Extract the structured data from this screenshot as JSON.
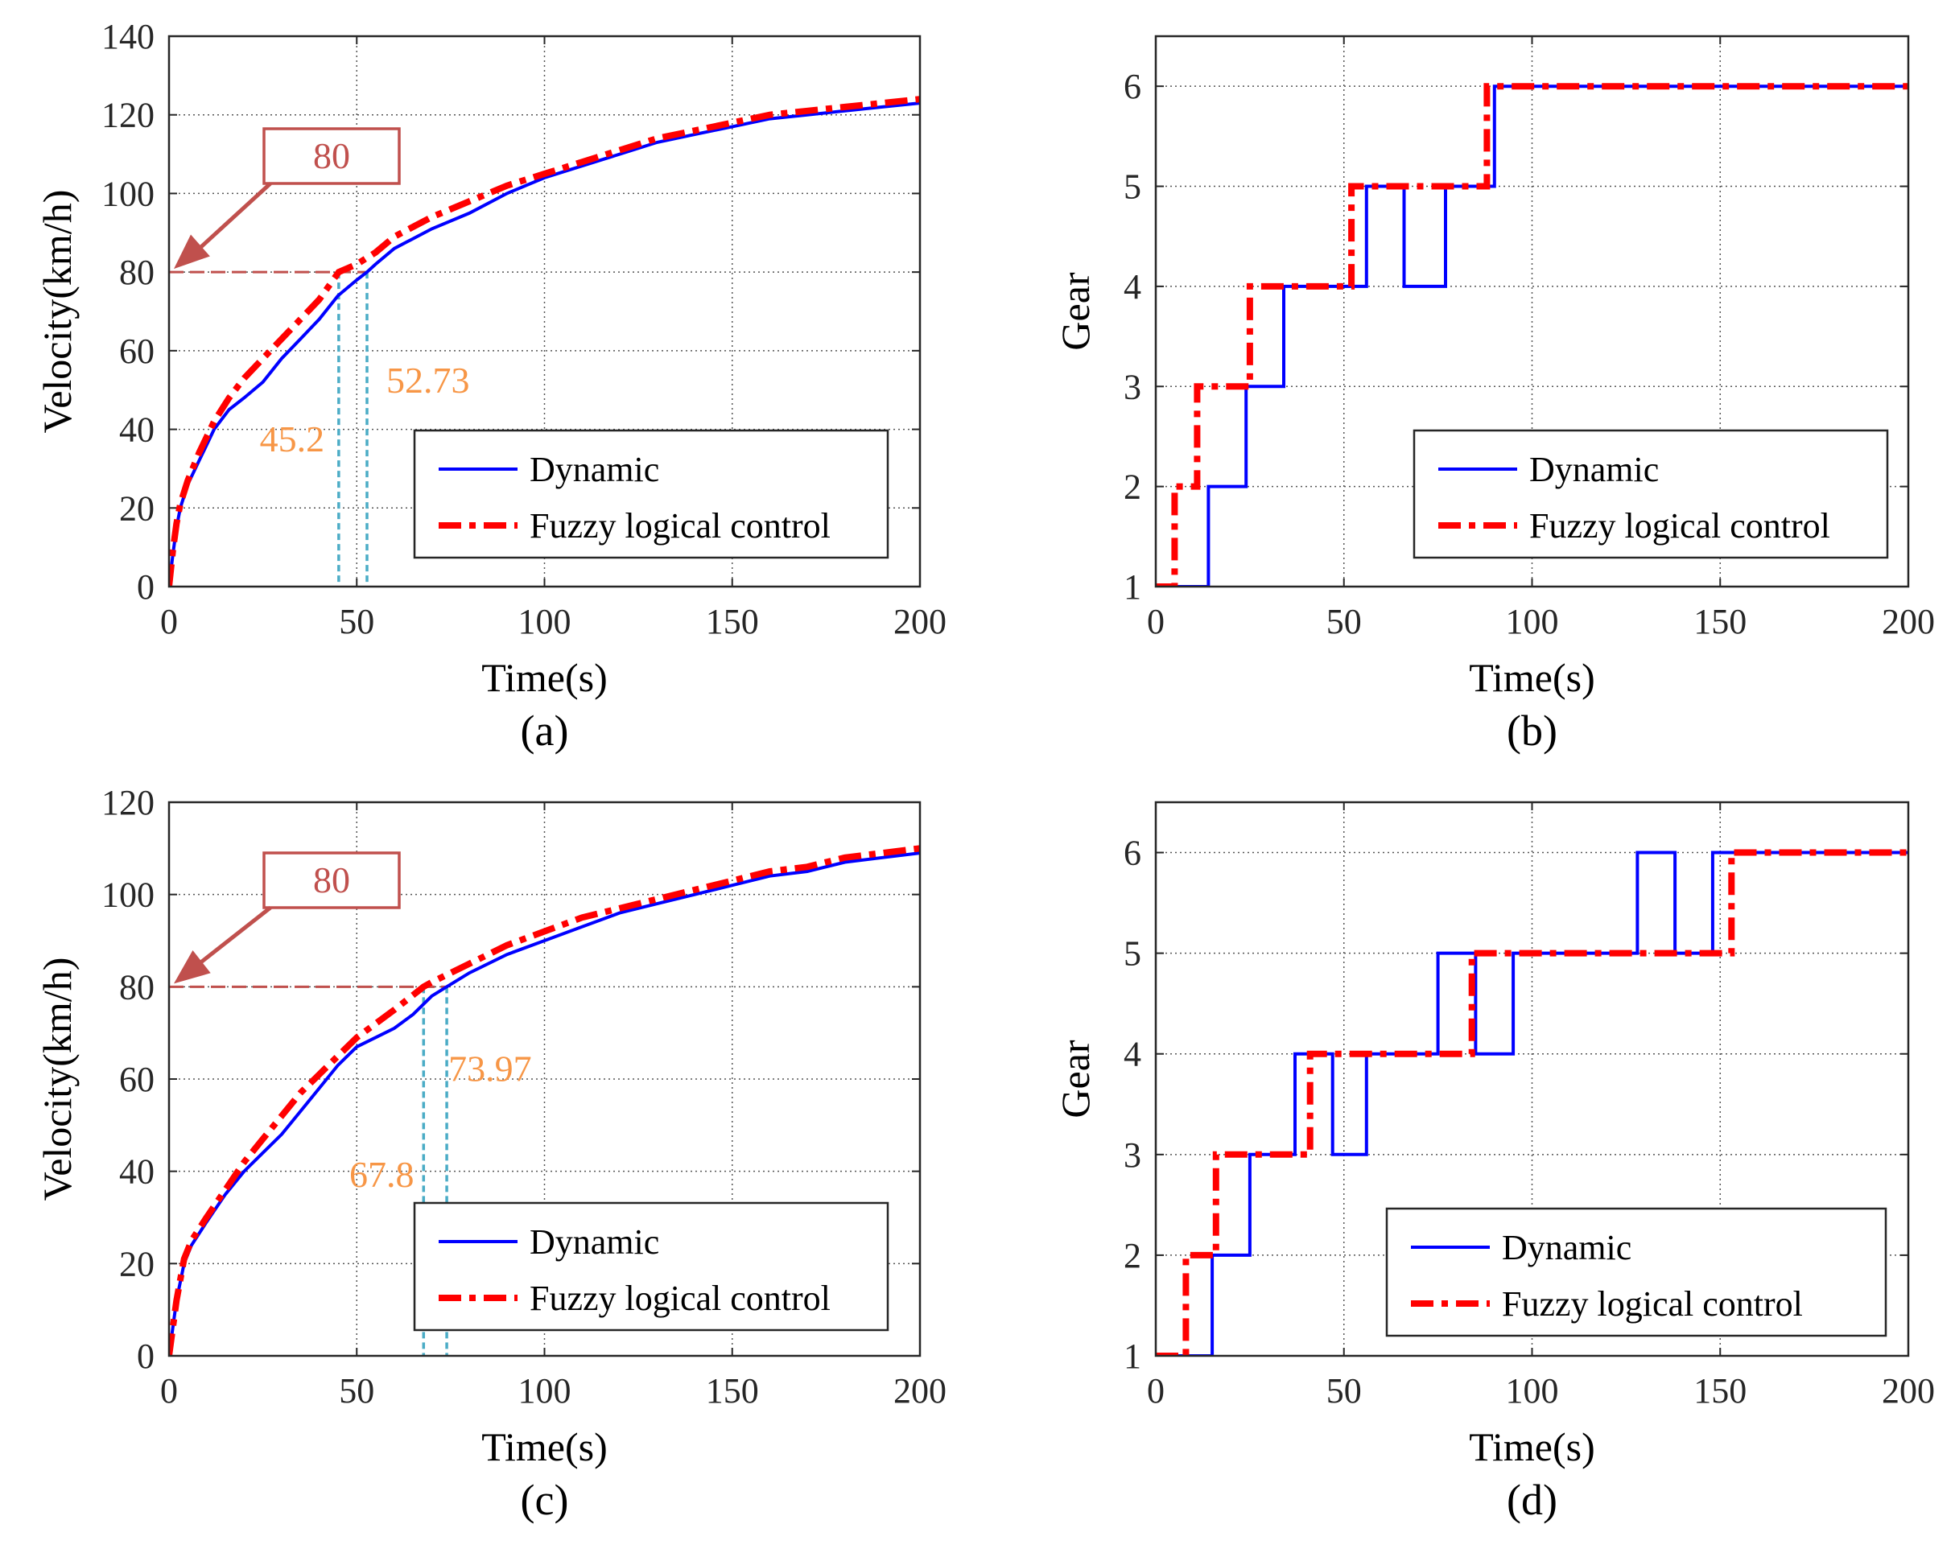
{
  "colors": {
    "dynamic": "#0000ff",
    "fuzzy": "#ff0000",
    "annotation": "#c0504d",
    "marker_text": "#f79646",
    "marker_line": "#4bacc6"
  },
  "chart_data": [
    {
      "panel_label": "(a)",
      "type": "line",
      "xlabel": "Time(s)",
      "ylabel": "Velocity(km/h)",
      "xlim": [
        0,
        200
      ],
      "ylim": [
        0,
        140
      ],
      "xticks": [
        0,
        50,
        100,
        150,
        200
      ],
      "yticks": [
        0,
        20,
        40,
        60,
        80,
        100,
        120,
        140
      ],
      "grid": true,
      "legend": "bottom-right",
      "series": [
        {
          "name": "Dynamic",
          "style": "solid",
          "points": [
            [
              0,
              0
            ],
            [
              1,
              8
            ],
            [
              2,
              15
            ],
            [
              3,
              20
            ],
            [
              5,
              26
            ],
            [
              8,
              32
            ],
            [
              12,
              40
            ],
            [
              16,
              45
            ],
            [
              20,
              48
            ],
            [
              25,
              52
            ],
            [
              30,
              58
            ],
            [
              35,
              63
            ],
            [
              40,
              68
            ],
            [
              45,
              74
            ],
            [
              50,
              78
            ],
            [
              52.73,
              80
            ],
            [
              55,
              82
            ],
            [
              60,
              86
            ],
            [
              70,
              91
            ],
            [
              80,
              95
            ],
            [
              90,
              100
            ],
            [
              100,
              104
            ],
            [
              110,
              107
            ],
            [
              120,
              110
            ],
            [
              130,
              113
            ],
            [
              140,
              115
            ],
            [
              150,
              117
            ],
            [
              160,
              119
            ],
            [
              170,
              120
            ],
            [
              180,
              121
            ],
            [
              190,
              122
            ],
            [
              200,
              123
            ]
          ]
        },
        {
          "name": "Fuzzy logical control",
          "style": "dashdot",
          "points": [
            [
              0,
              0
            ],
            [
              1,
              9
            ],
            [
              2,
              16
            ],
            [
              3,
              21
            ],
            [
              5,
              27
            ],
            [
              8,
              34
            ],
            [
              12,
              42
            ],
            [
              16,
              48
            ],
            [
              20,
              53
            ],
            [
              25,
              58
            ],
            [
              30,
              63
            ],
            [
              35,
              68
            ],
            [
              40,
              73
            ],
            [
              45.2,
              80
            ],
            [
              50,
              82
            ],
            [
              55,
              85
            ],
            [
              60,
              89
            ],
            [
              70,
              94
            ],
            [
              80,
              98
            ],
            [
              90,
              102
            ],
            [
              100,
              105
            ],
            [
              110,
              108
            ],
            [
              120,
              111
            ],
            [
              130,
              114
            ],
            [
              140,
              116
            ],
            [
              150,
              118
            ],
            [
              160,
              120
            ],
            [
              170,
              121
            ],
            [
              180,
              122
            ],
            [
              190,
              123
            ],
            [
              200,
              124
            ]
          ]
        }
      ],
      "reference": {
        "y": 80,
        "label": "80"
      },
      "markers": [
        {
          "x": 45.2,
          "label": "45.2"
        },
        {
          "x": 52.73,
          "label": "52.73"
        }
      ]
    },
    {
      "panel_label": "(b)",
      "type": "line",
      "xlabel": "Time(s)",
      "ylabel": "Gear",
      "xlim": [
        0,
        200
      ],
      "ylim": [
        1,
        6.5
      ],
      "xticks": [
        0,
        50,
        100,
        150,
        200
      ],
      "yticks": [
        1,
        2,
        3,
        4,
        5,
        6
      ],
      "grid": true,
      "legend": "middle-right",
      "series": [
        {
          "name": "Dynamic",
          "style": "solid",
          "points": [
            [
              0,
              1
            ],
            [
              14,
              1
            ],
            [
              14,
              2
            ],
            [
              24,
              2
            ],
            [
              24,
              3
            ],
            [
              34,
              3
            ],
            [
              34,
              4
            ],
            [
              56,
              4
            ],
            [
              56,
              5
            ],
            [
              66,
              5
            ],
            [
              66,
              4
            ],
            [
              77,
              4
            ],
            [
              77,
              5
            ],
            [
              90,
              5
            ],
            [
              90,
              6
            ],
            [
              200,
              6
            ]
          ]
        },
        {
          "name": "Fuzzy logical control",
          "style": "dashdot",
          "points": [
            [
              0,
              1
            ],
            [
              5,
              1
            ],
            [
              5,
              2
            ],
            [
              11,
              2
            ],
            [
              11,
              3
            ],
            [
              25,
              3
            ],
            [
              25,
              4
            ],
            [
              52,
              4
            ],
            [
              52,
              5
            ],
            [
              88,
              5
            ],
            [
              88,
              6
            ],
            [
              200,
              6
            ]
          ]
        }
      ]
    },
    {
      "panel_label": "(c)",
      "type": "line",
      "xlabel": "Time(s)",
      "ylabel": "Velocity(km/h)",
      "xlim": [
        0,
        200
      ],
      "ylim": [
        0,
        120
      ],
      "xticks": [
        0,
        50,
        100,
        150,
        200
      ],
      "yticks": [
        0,
        20,
        40,
        60,
        80,
        100,
        120
      ],
      "grid": true,
      "legend": "bottom-right",
      "series": [
        {
          "name": "Dynamic",
          "style": "solid",
          "points": [
            [
              0,
              0
            ],
            [
              2,
              12
            ],
            [
              4,
              20
            ],
            [
              6,
              24
            ],
            [
              10,
              29
            ],
            [
              15,
              35
            ],
            [
              20,
              40
            ],
            [
              25,
              44
            ],
            [
              30,
              48
            ],
            [
              35,
              53
            ],
            [
              40,
              58
            ],
            [
              45,
              63
            ],
            [
              50,
              67
            ],
            [
              55,
              69
            ],
            [
              60,
              71
            ],
            [
              65,
              74
            ],
            [
              70,
              78
            ],
            [
              73.97,
              80
            ],
            [
              80,
              83
            ],
            [
              90,
              87
            ],
            [
              100,
              90
            ],
            [
              110,
              93
            ],
            [
              120,
              96
            ],
            [
              130,
              98
            ],
            [
              140,
              100
            ],
            [
              150,
              102
            ],
            [
              160,
              104
            ],
            [
              170,
              105
            ],
            [
              180,
              107
            ],
            [
              190,
              108
            ],
            [
              200,
              109
            ]
          ]
        },
        {
          "name": "Fuzzy logical control",
          "style": "dashdot",
          "points": [
            [
              0,
              0
            ],
            [
              2,
              12
            ],
            [
              4,
              21
            ],
            [
              6,
              25
            ],
            [
              10,
              30
            ],
            [
              15,
              36
            ],
            [
              20,
              42
            ],
            [
              25,
              47
            ],
            [
              30,
              52
            ],
            [
              35,
              57
            ],
            [
              40,
              61
            ],
            [
              45,
              65
            ],
            [
              50,
              69
            ],
            [
              55,
              72
            ],
            [
              60,
              75
            ],
            [
              67.8,
              80
            ],
            [
              70,
              81
            ],
            [
              80,
              85
            ],
            [
              90,
              89
            ],
            [
              100,
              92
            ],
            [
              110,
              95
            ],
            [
              120,
              97
            ],
            [
              130,
              99
            ],
            [
              140,
              101
            ],
            [
              150,
              103
            ],
            [
              160,
              105
            ],
            [
              170,
              106
            ],
            [
              180,
              108
            ],
            [
              190,
              109
            ],
            [
              200,
              110
            ]
          ]
        }
      ],
      "reference": {
        "y": 80,
        "label": "80"
      },
      "markers": [
        {
          "x": 67.8,
          "label": "67.8"
        },
        {
          "x": 73.97,
          "label": "73.97"
        }
      ]
    },
    {
      "panel_label": "(d)",
      "type": "line",
      "xlabel": "Time(s)",
      "ylabel": "Gear",
      "xlim": [
        0,
        200
      ],
      "ylim": [
        1,
        6.5
      ],
      "xticks": [
        0,
        50,
        100,
        150,
        200
      ],
      "yticks": [
        1,
        2,
        3,
        4,
        5,
        6
      ],
      "grid": true,
      "legend": "bottom-right",
      "series": [
        {
          "name": "Dynamic",
          "style": "solid",
          "points": [
            [
              0,
              1
            ],
            [
              15,
              1
            ],
            [
              15,
              2
            ],
            [
              25,
              2
            ],
            [
              25,
              3
            ],
            [
              37,
              3
            ],
            [
              37,
              4
            ],
            [
              47,
              4
            ],
            [
              47,
              3
            ],
            [
              56,
              3
            ],
            [
              56,
              4
            ],
            [
              75,
              4
            ],
            [
              75,
              5
            ],
            [
              85,
              5
            ],
            [
              85,
              4
            ],
            [
              95,
              4
            ],
            [
              95,
              5
            ],
            [
              128,
              5
            ],
            [
              128,
              6
            ],
            [
              138,
              6
            ],
            [
              138,
              5
            ],
            [
              148,
              5
            ],
            [
              148,
              6
            ],
            [
              200,
              6
            ]
          ]
        },
        {
          "name": "Fuzzy logical control",
          "style": "dashdot",
          "points": [
            [
              0,
              1
            ],
            [
              8,
              1
            ],
            [
              8,
              2
            ],
            [
              16,
              2
            ],
            [
              16,
              3
            ],
            [
              41,
              3
            ],
            [
              41,
              4
            ],
            [
              84,
              4
            ],
            [
              84,
              5
            ],
            [
              153,
              5
            ],
            [
              153,
              6
            ],
            [
              200,
              6
            ]
          ]
        }
      ]
    }
  ]
}
